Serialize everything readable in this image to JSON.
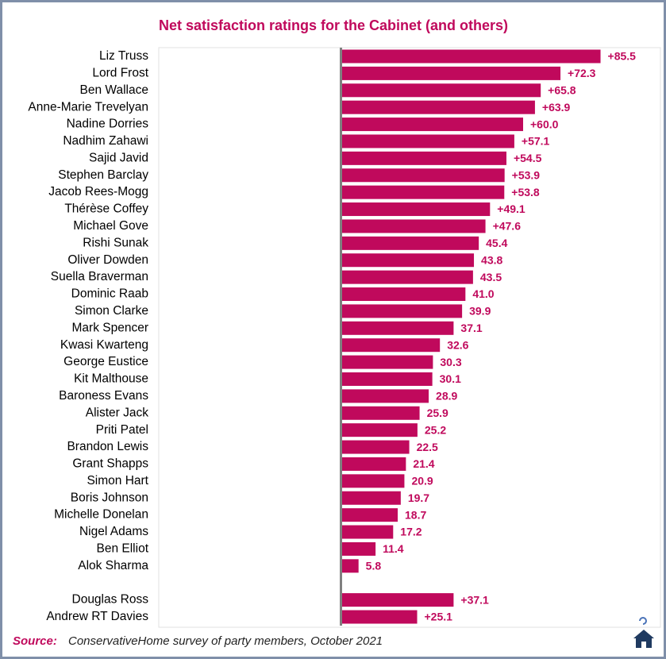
{
  "chart_data": {
    "type": "hbar",
    "title": "Net satisfaction ratings for the Cabinet (and others)",
    "source_label": "Source:",
    "source": "ConservativeHome survey of party members, October 2021",
    "categories": [
      "Liz Truss",
      "Lord Frost",
      "Ben Wallace",
      "Anne-Marie Trevelyan",
      "Nadine Dorries",
      "Nadhim Zahawi",
      "Sajid Javid",
      "Stephen Barclay",
      "Jacob Rees-Mogg",
      "Thérèse Coffey",
      "Michael Gove",
      "Rishi Sunak",
      "Oliver Dowden",
      "Suella Braverman",
      "Dominic Raab",
      "Simon Clarke",
      "Mark Spencer",
      "Kwasi Kwarteng",
      "George Eustice",
      "Kit Malthouse",
      "Baroness Evans",
      "Alister Jack",
      "Priti Patel",
      "Brandon Lewis",
      "Grant Shapps",
      "Simon Hart",
      "Boris Johnson",
      "Michelle Donelan",
      "Nigel Adams",
      "Ben Elliot",
      "Alok Sharma",
      null,
      "Douglas Ross",
      "Andrew RT Davies"
    ],
    "values": [
      85.5,
      72.3,
      65.8,
      63.9,
      60.0,
      57.1,
      54.5,
      53.9,
      53.8,
      49.1,
      47.6,
      45.4,
      43.8,
      43.5,
      41.0,
      39.9,
      37.1,
      32.6,
      30.3,
      30.1,
      28.9,
      25.9,
      25.2,
      22.5,
      21.4,
      20.9,
      19.7,
      18.7,
      17.2,
      11.4,
      5.8,
      null,
      37.1,
      25.1
    ],
    "value_labels": [
      "+85.5",
      "+72.3",
      "+65.8",
      "+63.9",
      "+60.0",
      "+57.1",
      "+54.5",
      "+53.9",
      "+53.8",
      "+49.1",
      "+47.6",
      "45.4",
      "43.8",
      "43.5",
      "41.0",
      "39.9",
      "37.1",
      "32.6",
      "30.3",
      "30.1",
      "28.9",
      "25.9",
      "25.2",
      "22.5",
      "21.4",
      "20.9",
      "19.7",
      "18.7",
      "17.2",
      "11.4",
      "5.8",
      null,
      "+37.1",
      "+25.1"
    ],
    "color": "#c0095c",
    "xlim": [
      -60,
      100
    ]
  }
}
